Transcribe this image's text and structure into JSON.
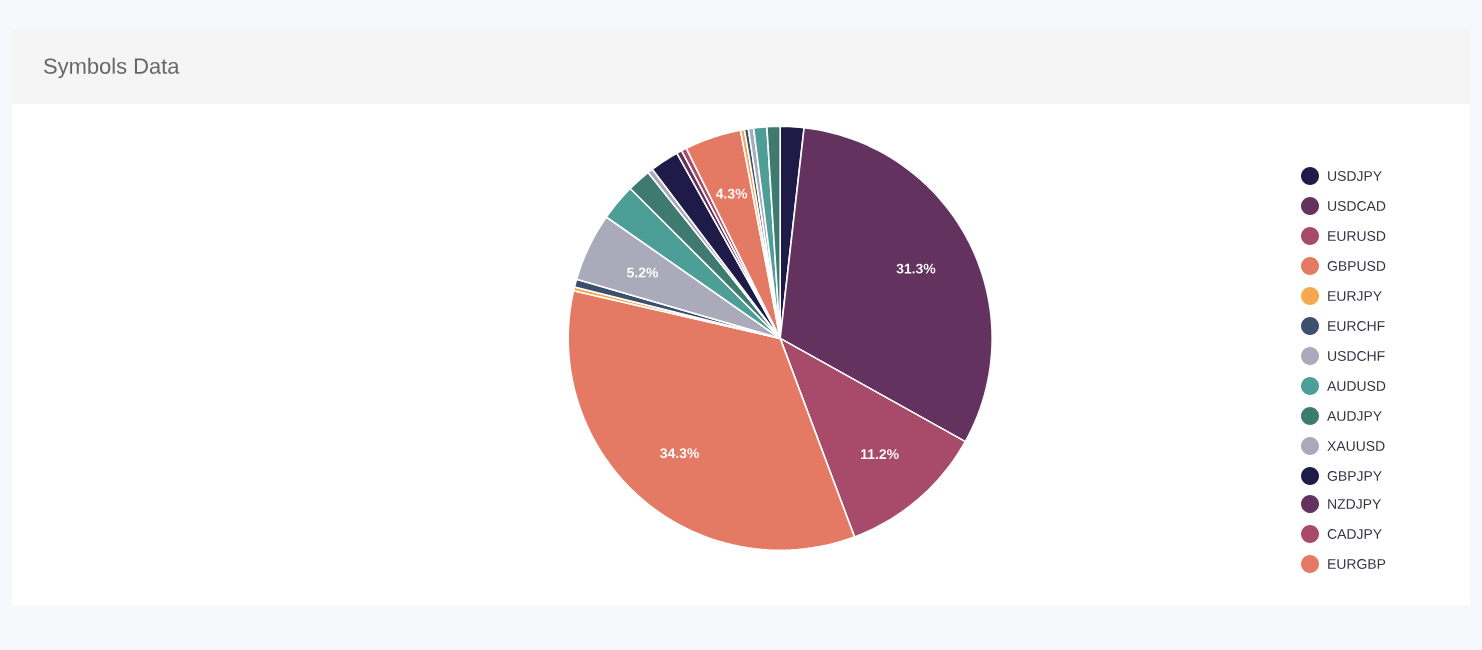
{
  "chart_data": {
    "type": "pie",
    "title": "Symbols Data",
    "categories": [
      "USDJPY",
      "USDCAD",
      "EURUSD",
      "GBPUSD",
      "EURJPY",
      "EURCHF",
      "USDCHF",
      "AUDUSD",
      "AUDJPY",
      "XAUUSD",
      "GBPJPY",
      "NZDJPY",
      "CADJPY",
      "EURGBP",
      null,
      null,
      null,
      null,
      null
    ],
    "values": [
      1.8,
      31.3,
      11.2,
      34.3,
      0.3,
      0.6,
      5.2,
      2.8,
      1.8,
      0.4,
      2.2,
      0.4,
      0.4,
      4.3,
      0.3,
      0.3,
      0.4,
      1.0,
      1.0
    ],
    "colors": [
      "#1e1b48",
      "#63325f",
      "#a84a6a",
      "#e47a63",
      "#f5a94f",
      "#3b4f6e",
      "#abaabb",
      "#4e9e98",
      "#3f7a71",
      "#aaa8bb",
      "#1e1b48",
      "#63325f",
      "#a84a6a",
      "#e47a63",
      "#f5a94f",
      "#3b4f6e",
      "#abaabb",
      "#4e9e98",
      "#3f7a71"
    ],
    "value_labels": [
      null,
      "31.3%",
      "11.2%",
      "34.3%",
      null,
      null,
      "5.2%",
      null,
      null,
      null,
      null,
      null,
      null,
      "4.3%",
      null,
      null,
      null,
      null,
      null
    ],
    "legend": "right"
  }
}
